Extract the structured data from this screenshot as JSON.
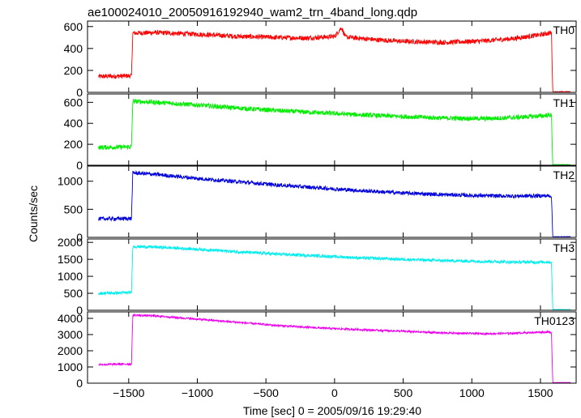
{
  "chart_data": {
    "type": "line",
    "title": "ae100024010_20050916192940_wam2_trn_4band_long.qdp",
    "xlabel": "Time [sec] 0 = 2005/09/16 19:29:40",
    "ylabel": "Counts/sec",
    "xlim": [
      -1800,
      1760
    ],
    "xticks": [
      -1500,
      -1000,
      -500,
      0,
      500,
      1000,
      1500
    ],
    "xtick_labels": [
      "−1500",
      "−1000",
      "−500",
      "0",
      "500",
      "1000",
      "1500"
    ],
    "grid": false,
    "panels": [
      {
        "name": "TH0",
        "color": "#ff0000",
        "ylim": [
          0,
          650
        ],
        "yticks": [
          0,
          200,
          400,
          600
        ],
        "ytick_labels": [
          "0",
          "200",
          "400",
          "600"
        ],
        "noise": 22,
        "x": [
          -1720,
          -1480,
          -1470,
          -1300,
          -1000,
          -700,
          -400,
          -200,
          0,
          50,
          80,
          300,
          500,
          800,
          1100,
          1300,
          1500,
          1580,
          1590,
          1720
        ],
        "y": [
          145,
          150,
          540,
          545,
          530,
          510,
          500,
          495,
          510,
          590,
          505,
          480,
          465,
          455,
          470,
          490,
          525,
          545,
          5,
          5
        ]
      },
      {
        "name": "TH1",
        "color": "#00ee00",
        "ylim": [
          0,
          680
        ],
        "yticks": [
          0,
          200,
          400,
          600
        ],
        "ytick_labels": [
          "0",
          "200",
          "400",
          "600"
        ],
        "noise": 22,
        "x": [
          -1720,
          -1480,
          -1470,
          -1300,
          -1000,
          -700,
          -400,
          -100,
          200,
          500,
          800,
          1100,
          1300,
          1500,
          1580,
          1590,
          1720
        ],
        "y": [
          170,
          175,
          610,
          600,
          575,
          545,
          520,
          500,
          480,
          465,
          450,
          445,
          455,
          470,
          480,
          5,
          5
        ]
      },
      {
        "name": "TH2",
        "color": "#0000dd",
        "ylim": [
          0,
          1270
        ],
        "yticks": [
          0,
          500,
          1000
        ],
        "ytick_labels": [
          "0",
          "500",
          "1000"
        ],
        "noise": 35,
        "x": [
          -1720,
          -1480,
          -1470,
          -1300,
          -1000,
          -700,
          -400,
          -100,
          200,
          500,
          800,
          1100,
          1300,
          1500,
          1580,
          1590,
          1720
        ],
        "y": [
          330,
          335,
          1150,
          1120,
          1050,
          990,
          930,
          880,
          830,
          790,
          760,
          740,
          735,
          740,
          740,
          10,
          10
        ]
      },
      {
        "name": "TH3",
        "color": "#00eeee",
        "ylim": [
          0,
          2100
        ],
        "yticks": [
          0,
          500,
          1000,
          1500,
          2000
        ],
        "ytick_labels": [
          "0",
          "500",
          "1000",
          "1500",
          "2000"
        ],
        "noise": 45,
        "x": [
          -1720,
          -1480,
          -1470,
          -1300,
          -1000,
          -700,
          -400,
          -100,
          200,
          500,
          800,
          1100,
          1300,
          1500,
          1580,
          1590,
          1720
        ],
        "y": [
          500,
          520,
          1880,
          1860,
          1800,
          1720,
          1650,
          1600,
          1540,
          1500,
          1460,
          1440,
          1420,
          1420,
          1420,
          20,
          20
        ]
      },
      {
        "name": "TH0123",
        "color": "#ee00ee",
        "ylim": [
          0,
          4400
        ],
        "yticks": [
          0,
          1000,
          2000,
          3000,
          4000
        ],
        "ytick_labels": [
          "0",
          "1000",
          "2000",
          "3000",
          "4000"
        ],
        "noise": 60,
        "x": [
          -1720,
          -1480,
          -1470,
          -1300,
          -1000,
          -700,
          -400,
          -100,
          200,
          500,
          800,
          1100,
          1300,
          1500,
          1580,
          1590,
          1720
        ],
        "y": [
          1150,
          1180,
          4200,
          4150,
          3950,
          3750,
          3550,
          3400,
          3300,
          3200,
          3100,
          3050,
          3080,
          3150,
          3150,
          40,
          40
        ]
      }
    ]
  }
}
